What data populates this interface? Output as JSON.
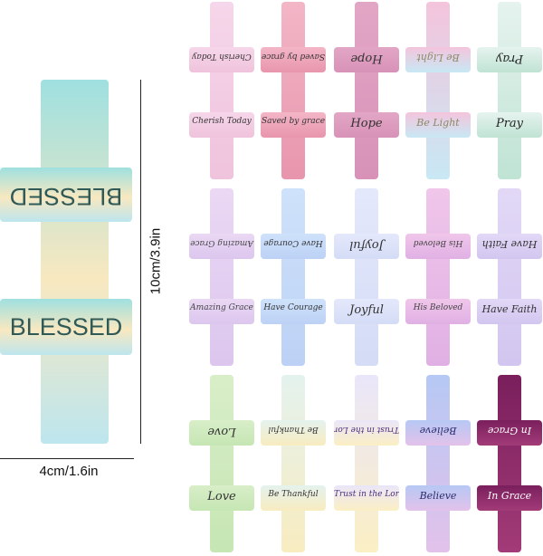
{
  "main_cross": {
    "text": "BLESSED",
    "colors": [
      "#9fe0e0",
      "#f8e8c0",
      "#bde6ee"
    ]
  },
  "dimensions": {
    "height_label": "10cm/3.9in",
    "width_label": "4cm/1.6in"
  },
  "crosses": [
    {
      "text": "Cherish Today",
      "colors": [
        "#f6d6ea",
        "#efc3dc"
      ],
      "ink": "#333"
    },
    {
      "text": "Saved by grace",
      "colors": [
        "#f3b6c7",
        "#e895ad"
      ],
      "ink": "#333",
      "vertical": true
    },
    {
      "text": "Hope",
      "colors": [
        "#e2a6c5",
        "#d892b8"
      ],
      "ink": "#333"
    },
    {
      "text": "Be Light",
      "colors": [
        "#f4c4dc",
        "#c8e8f4"
      ],
      "ink": "#8a8a6a"
    },
    {
      "text": "Pray",
      "colors": [
        "#e6f3ee",
        "#bfe3d4"
      ],
      "ink": "#222"
    },
    {
      "text": "Amazing Grace",
      "colors": [
        "#ead8f4",
        "#dcc6ee"
      ],
      "ink": "#444",
      "vertical": true
    },
    {
      "text": "Have Courage",
      "colors": [
        "#cfe2fb",
        "#bcd1f5"
      ],
      "ink": "#333",
      "vertical": true
    },
    {
      "text": "Joyful",
      "colors": [
        "#e4e8fb",
        "#d4dcf6"
      ],
      "ink": "#333"
    },
    {
      "text": "His Beloved",
      "colors": [
        "#f0c6ea",
        "#e0b0e4"
      ],
      "ink": "#444",
      "vertical": true
    },
    {
      "text": "Have Faith",
      "colors": [
        "#e2d8f6",
        "#d2c6f0"
      ],
      "ink": "#333"
    },
    {
      "text": "Love",
      "colors": [
        "#d8eec8",
        "#c6e6b4"
      ],
      "ink": "#333"
    },
    {
      "text": "Be Thankful",
      "colors": [
        "#e4f2ee",
        "#f8ecc0"
      ],
      "ink": "#333"
    },
    {
      "text": "Trust in the Lord",
      "colors": [
        "#eae6fa",
        "#fbefc4"
      ],
      "ink": "#4a2c80"
    },
    {
      "text": "Believe",
      "colors": [
        "#b6c8f4",
        "#e2c2ea"
      ],
      "ink": "#2b2e6e"
    },
    {
      "text": "In Grace",
      "colors": [
        "#7a1f5c",
        "#a23b78"
      ],
      "ink": "#ffffff"
    }
  ]
}
